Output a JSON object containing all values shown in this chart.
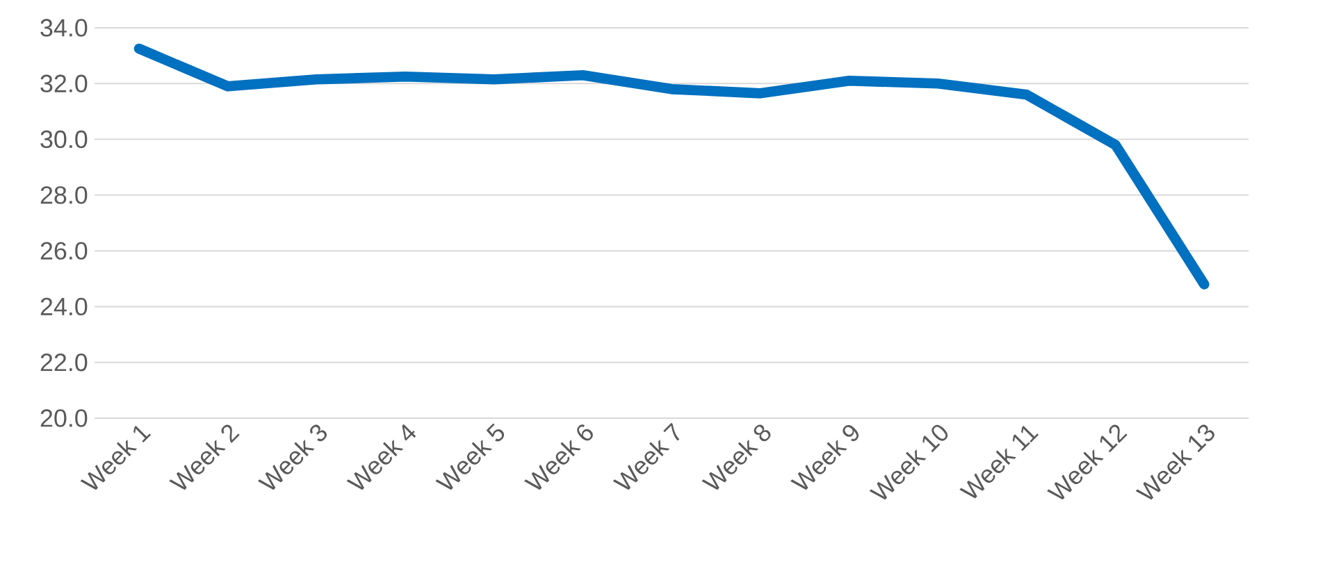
{
  "chart_data": {
    "type": "line",
    "categories": [
      "Week 1",
      "Week 2",
      "Week 3",
      "Week 4",
      "Week 5",
      "Week 6",
      "Week 7",
      "Week 8",
      "Week 9",
      "Week 10",
      "Week 11",
      "Week 12",
      "Week 13"
    ],
    "series": [
      {
        "color": "#0070c0",
        "values": [
          33.25,
          31.9,
          32.15,
          32.25,
          32.15,
          32.3,
          31.8,
          31.65,
          32.1,
          32.0,
          31.6,
          29.8,
          24.8
        ]
      }
    ],
    "ylim": [
      20,
      34
    ],
    "yticks": [
      {
        "value": 20,
        "label": "20.0"
      },
      {
        "value": 22,
        "label": "22.0"
      },
      {
        "value": 24,
        "label": "24.0"
      },
      {
        "value": 26,
        "label": "26.0"
      },
      {
        "value": 28,
        "label": "28.0"
      },
      {
        "value": 30,
        "label": "30.0"
      },
      {
        "value": 32,
        "label": "32.0"
      },
      {
        "value": 34,
        "label": "34.0"
      }
    ],
    "grid": "y",
    "marker": "none",
    "line_style": "solid"
  }
}
